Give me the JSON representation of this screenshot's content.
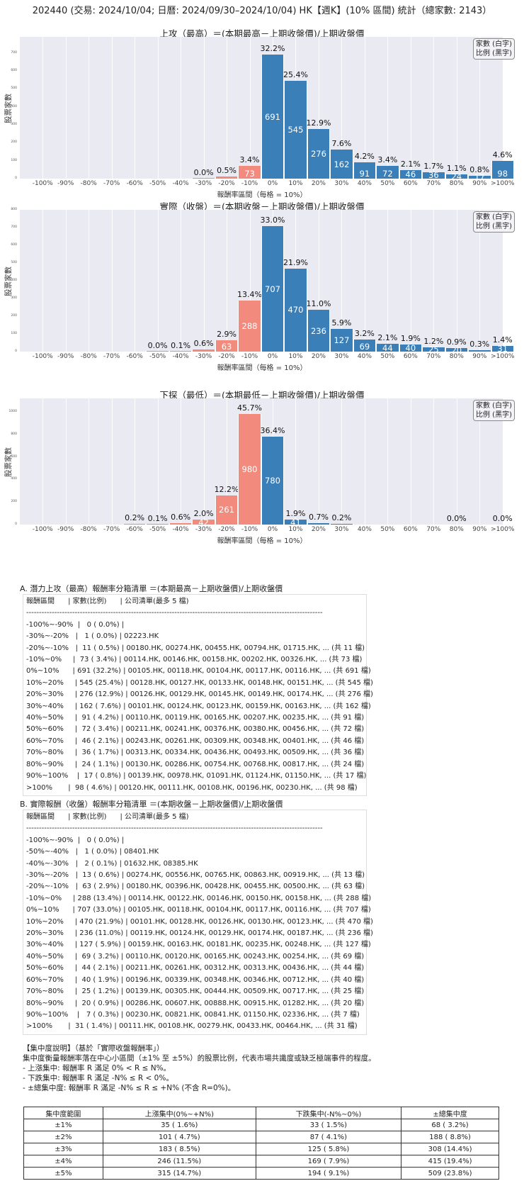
{
  "header": {
    "title": "202440 (交易: 2024/10/04; 日曆: 2024/09/30–2024/10/04) HK【週K】(10% 區間) 統計（總家數: 2143）"
  },
  "legend": {
    "line1": "家數 (白字)",
    "line2": "比例 (黑字)"
  },
  "axis": {
    "ylabel": "股票家數",
    "xlabel": "報酬率區間（每格 = 10%）",
    "categories": [
      "-100%",
      "-90%",
      "-80%",
      "-70%",
      "-60%",
      "-50%",
      "-40%",
      "-30%",
      "-20%",
      "-10%",
      "0%",
      "10%",
      "20%",
      "30%",
      "40%",
      "50%",
      "60%",
      "70%",
      "80%",
      "90%",
      ">100%"
    ]
  },
  "chart_data": [
    {
      "type": "bar",
      "title": "上攻（最高）＝(本期最高－上期收盤價)/上期收盤價",
      "xlabel": "報酬率區間（每格 = 10%）",
      "ylabel": "股票家數",
      "ylim": [
        0,
        790
      ],
      "yticks": [
        0,
        100,
        200,
        300,
        400,
        500,
        600,
        700
      ],
      "categories": [
        "-100%",
        "-90%",
        "-80%",
        "-70%",
        "-60%",
        "-50%",
        "-40%",
        "-30%",
        "-20%",
        "-10%",
        "0%",
        "10%",
        "20%",
        "30%",
        "40%",
        "50%",
        "60%",
        "70%",
        "80%",
        "90%",
        ">100%"
      ],
      "values": [
        0,
        0,
        0,
        0,
        0,
        0,
        0,
        1,
        11,
        73,
        691,
        545,
        276,
        162,
        91,
        72,
        46,
        36,
        24,
        17,
        98
      ],
      "labels_pct": [
        "",
        "",
        "",
        "",
        "",
        "",
        "",
        "0.0%",
        "0.5%",
        "3.4%",
        "32.2%",
        "25.4%",
        "12.9%",
        "7.6%",
        "4.2%",
        "3.4%",
        "2.1%",
        "1.7%",
        "1.1%",
        "0.8%",
        "4.6%"
      ],
      "labels_count": [
        "",
        "",
        "",
        "",
        "",
        "",
        "",
        "",
        "",
        "73",
        "691",
        "545",
        "276",
        "162",
        "91",
        "72",
        "46",
        "36",
        "24",
        "17",
        "98"
      ]
    },
    {
      "type": "bar",
      "title": "實際（收盤）＝(本期收盤－上期收盤價)/上期收盤價",
      "xlabel": "報酬率區間（每格 = 10%）",
      "ylabel": "股票家數",
      "ylim": [
        0,
        800
      ],
      "yticks": [
        0,
        100,
        200,
        300,
        400,
        500,
        600,
        700,
        800
      ],
      "categories": [
        "-100%",
        "-90%",
        "-80%",
        "-70%",
        "-60%",
        "-50%",
        "-40%",
        "-30%",
        "-20%",
        "-10%",
        "0%",
        "10%",
        "20%",
        "30%",
        "40%",
        "50%",
        "60%",
        "70%",
        "80%",
        "90%",
        ">100%"
      ],
      "values": [
        0,
        0,
        0,
        0,
        0,
        1,
        2,
        13,
        63,
        288,
        707,
        470,
        236,
        127,
        69,
        44,
        40,
        25,
        20,
        7,
        31
      ],
      "labels_pct": [
        "",
        "",
        "",
        "",
        "",
        "0.0%",
        "0.1%",
        "0.6%",
        "2.9%",
        "13.4%",
        "33.0%",
        "21.9%",
        "11.0%",
        "5.9%",
        "3.2%",
        "2.1%",
        "1.9%",
        "1.2%",
        "0.9%",
        "0.3%",
        "1.4%"
      ],
      "labels_count": [
        "",
        "",
        "",
        "",
        "",
        "",
        "",
        "",
        "63",
        "288",
        "707",
        "470",
        "236",
        "127",
        "69",
        "44",
        "40",
        "25",
        "20",
        "",
        "31"
      ]
    },
    {
      "type": "bar",
      "title": "下探（最低）＝(本期最低－上期收盤價)/上期收盤價",
      "xlabel": "報酬率區間（每格 = 10%）",
      "ylabel": "股票家數",
      "ylim": [
        0,
        1120
      ],
      "yticks": [
        0,
        200,
        400,
        600,
        800,
        1000
      ],
      "categories": [
        "-100%",
        "-90%",
        "-80%",
        "-70%",
        "-60%",
        "-50%",
        "-40%",
        "-30%",
        "-20%",
        "-10%",
        "0%",
        "10%",
        "20%",
        "30%",
        "40%",
        "50%",
        "60%",
        "70%",
        "80%",
        "90%",
        ">100%"
      ],
      "values": [
        0,
        0,
        0,
        0,
        4,
        3,
        13,
        42,
        261,
        980,
        780,
        41,
        15,
        4,
        0,
        0,
        0,
        0,
        0,
        0,
        0
      ],
      "labels_pct": [
        "",
        "",
        "",
        "",
        "0.2%",
        "0.1%",
        "0.6%",
        "2.0%",
        "12.2%",
        "45.7%",
        "36.4%",
        "1.9%",
        "0.7%",
        "0.2%",
        "",
        "",
        "",
        "",
        "0.0%",
        "",
        "0.0%"
      ],
      "labels_count": [
        "",
        "",
        "",
        "",
        "",
        "",
        "",
        "42",
        "261",
        "980",
        "780",
        "41",
        "",
        "",
        "",
        "",
        "",
        "",
        "",
        "",
        ""
      ]
    }
  ],
  "listA": {
    "title": "A. 潛力上攻（最高）報酬率分箱清單 ＝(本期最高－上期收盤價)/上期收盤價",
    "header": "報酬區間      | 家數(比例)      | 公司清單(最多 5 檔)",
    "divider": "--------------------------------------------------------------------------------------------------------------------",
    "rows": [
      "-100%~-90%  |   0 ( 0.0%) |",
      "-30%~-20%   |   1 ( 0.0%) | 02223.HK",
      "-20%~-10%   |  11 ( 0.5%) | 00180.HK, 00274.HK, 00455.HK, 00794.HK, 01715.HK, ... (共 11 檔)",
      "-10%~0%     |  73 ( 3.4%) | 00114.HK, 00146.HK, 00158.HK, 00202.HK, 00326.HK, ... (共 73 檔)",
      "0%~10%      | 691 (32.2%) | 00105.HK, 00118.HK, 00104.HK, 00117.HK, 00116.HK, ... (共 691 檔)",
      "10%~20%     | 545 (25.4%) | 00128.HK, 00127.HK, 00133.HK, 00148.HK, 00151.HK, ... (共 545 檔)",
      "20%~30%     | 276 (12.9%) | 00126.HK, 00129.HK, 00145.HK, 00149.HK, 00174.HK, ... (共 276 檔)",
      "30%~40%     | 162 ( 7.6%) | 00101.HK, 00124.HK, 00123.HK, 00159.HK, 00163.HK, ... (共 162 檔)",
      "40%~50%     |  91 ( 4.2%) | 00110.HK, 00119.HK, 00165.HK, 00207.HK, 00235.HK, ... (共 91 檔)",
      "50%~60%     |  72 ( 3.4%) | 00211.HK, 00241.HK, 00376.HK, 00380.HK, 00456.HK, ... (共 72 檔)",
      "60%~70%     |  46 ( 2.1%) | 00243.HK, 00261.HK, 00309.HK, 00348.HK, 00401.HK, ... (共 46 檔)",
      "70%~80%     |  36 ( 1.7%) | 00313.HK, 00334.HK, 00436.HK, 00493.HK, 00509.HK, ... (共 36 檔)",
      "80%~90%     |  24 ( 1.1%) | 00130.HK, 00286.HK, 00754.HK, 00768.HK, 00817.HK, ... (共 24 檔)",
      "90%~100%    |  17 ( 0.8%) | 00139.HK, 00978.HK, 01091.HK, 01124.HK, 01150.HK, ... (共 17 檔)",
      ">100%       |  98 ( 4.6%) | 00120.HK, 00111.HK, 00108.HK, 00196.HK, 00230.HK, ... (共 98 檔)"
    ]
  },
  "listB": {
    "title": "B. 實際報酬（收盤）報酬率分箱清單 ＝(本期收盤－上期收盤價)/上期收盤價",
    "header": "報酬區間      | 家數(比例)      | 公司清單(最多 5 檔)",
    "divider": "--------------------------------------------------------------------------------------------------------------------",
    "rows": [
      "-100%~-90%  |   0 ( 0.0%) |",
      "-50%~-40%   |   1 ( 0.0%) | 08401.HK",
      "-40%~-30%   |   2 ( 0.1%) | 01632.HK, 08385.HK",
      "-30%~-20%   |  13 ( 0.6%) | 00274.HK, 00556.HK, 00765.HK, 00863.HK, 00919.HK, ... (共 13 檔)",
      "-20%~-10%   |  63 ( 2.9%) | 00180.HK, 00396.HK, 00428.HK, 00455.HK, 00500.HK, ... (共 63 檔)",
      "-10%~0%     | 288 (13.4%) | 00114.HK, 00122.HK, 00146.HK, 00150.HK, 00158.HK, ... (共 288 檔)",
      "0%~10%      | 707 (33.0%) | 00105.HK, 00118.HK, 00104.HK, 00117.HK, 00116.HK, ... (共 707 檔)",
      "10%~20%     | 470 (21.9%) | 00101.HK, 00128.HK, 00126.HK, 00130.HK, 00123.HK, ... (共 470 檔)",
      "20%~30%     | 236 (11.0%) | 00119.HK, 00124.HK, 00129.HK, 00174.HK, 00187.HK, ... (共 236 檔)",
      "30%~40%     | 127 ( 5.9%) | 00159.HK, 00163.HK, 00181.HK, 00235.HK, 00248.HK, ... (共 127 檔)",
      "40%~50%     |  69 ( 3.2%) | 00110.HK, 00120.HK, 00165.HK, 00243.HK, 00254.HK, ... (共 69 檔)",
      "50%~60%     |  44 ( 2.1%) | 00211.HK, 00261.HK, 00312.HK, 00313.HK, 00436.HK, ... (共 44 檔)",
      "60%~70%     |  40 ( 1.9%) | 00196.HK, 00339.HK, 00348.HK, 00346.HK, 00712.HK, ... (共 40 檔)",
      "70%~80%     |  25 ( 1.2%) | 00139.HK, 00305.HK, 00444.HK, 00509.HK, 00717.HK, ... (共 25 檔)",
      "80%~90%     |  20 ( 0.9%) | 00286.HK, 00607.HK, 00888.HK, 00915.HK, 01282.HK, ... (共 20 檔)",
      "90%~100%    |   7 ( 0.3%) | 00230.HK, 00821.HK, 00841.HK, 01150.HK, 02336.HK, ... (共 7 檔)",
      ">100%       |  31 ( 1.4%) | 00111.HK, 00108.HK, 00279.HK, 00433.HK, 00464.HK, ... (共 31 檔)"
    ]
  },
  "concentration": {
    "heading": "【集中度說明】（基於「實際收盤報酬率」）",
    "desc": "集中度衡量報酬率落在中心小區間（±1% 至 ±5%）的股票比例，代表市場共識度或缺乏極端事件的程度。",
    "bullet1": " - 上漲集中: 報酬率 R 滿足 0% < R ≤ N%。",
    "bullet2": " - 下跌集中: 報酬率 R 滿足 -N% ≤ R < 0%。",
    "bullet3": " - ±總集中度: 報酬率 R 滿足 -N% ≤ R ≤ +N% (不含 R=0%)。",
    "table": {
      "headers": [
        "集中度範圍",
        "上漲集中(0%~+N%)",
        "下跌集中(-N%~0%)",
        "±總集中度"
      ],
      "rows": [
        [
          "±1%",
          "35 ( 1.6%)",
          "33 ( 1.5%)",
          "68 ( 3.2%)"
        ],
        [
          "±2%",
          "101 ( 4.7%)",
          "87 ( 4.1%)",
          "188 ( 8.8%)"
        ],
        [
          "±3%",
          "183 ( 8.5%)",
          "125 ( 5.8%)",
          "308 (14.4%)"
        ],
        [
          "±4%",
          "246 (11.5%)",
          "169 ( 7.9%)",
          "415 (19.4%)"
        ],
        [
          "±5%",
          "315 (14.7%)",
          "194 ( 9.1%)",
          "509 (23.8%)"
        ]
      ]
    }
  }
}
